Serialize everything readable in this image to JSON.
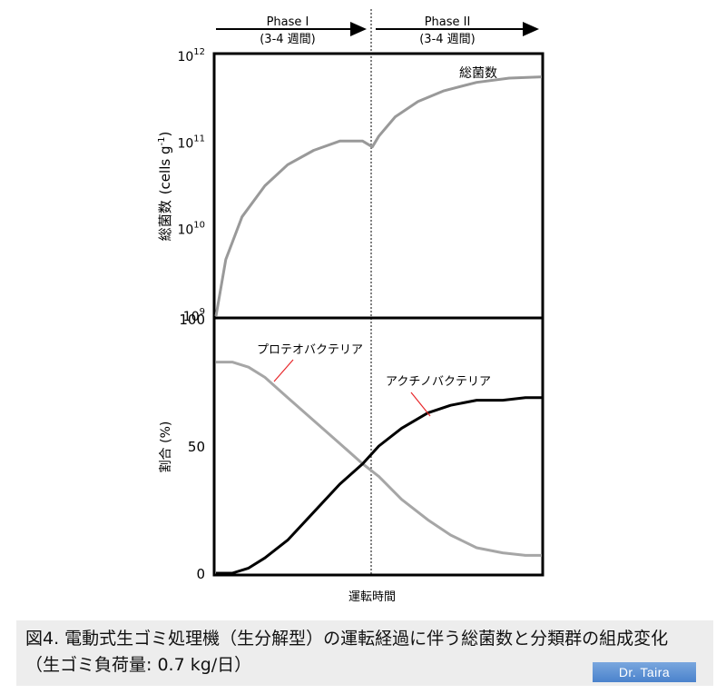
{
  "phases": [
    {
      "label": "Phase I",
      "duration": "(3-4 週間)"
    },
    {
      "label": "Phase II",
      "duration": "(3-4 週間)"
    }
  ],
  "chart_data": [
    {
      "type": "line",
      "ylabel_main": "総菌数",
      "ylabel_unit": "(cells g",
      "ylabel_sup": "-1",
      "ylabel_close": ")",
      "yscale": "log",
      "ylim": [
        1000000000.0,
        1000000000000.0
      ],
      "yticks": [
        {
          "base": "10",
          "exp": "9",
          "value": 1000000000.0
        },
        {
          "base": "10",
          "exp": "10",
          "value": 10000000000.0
        },
        {
          "base": "10",
          "exp": "11",
          "value": 100000000000.0
        },
        {
          "base": "10",
          "exp": "12",
          "value": 1000000000000.0
        }
      ],
      "xlim": [
        0,
        100
      ],
      "series": [
        {
          "name": "総菌数",
          "color": "#999999",
          "x": [
            0,
            3,
            8,
            15,
            22,
            30,
            38,
            45,
            48,
            50,
            55,
            62,
            70,
            80,
            90,
            100
          ],
          "y": [
            1000000000.0,
            4500000000.0,
            14000000000.0,
            32000000000.0,
            56000000000.0,
            82000000000.0,
            105000000000.0,
            105000000000.0,
            90000000000.0,
            120000000000.0,
            200000000000.0,
            300000000000.0,
            400000000000.0,
            500000000000.0,
            560000000000.0,
            580000000000.0
          ]
        }
      ]
    },
    {
      "type": "line",
      "ylabel": "割合 (%)",
      "xlabel": "運転時間",
      "ylim": [
        0,
        100
      ],
      "yticks": [
        "0",
        "50",
        "100"
      ],
      "xlim": [
        0,
        100
      ],
      "series": [
        {
          "name": "プロテオバクテリア",
          "color": "#a6a6a6",
          "x": [
            0,
            5,
            10,
            15,
            22,
            30,
            38,
            45,
            50,
            57,
            65,
            72,
            80,
            88,
            95,
            100
          ],
          "y": [
            83,
            83,
            81,
            77,
            69,
            60,
            51,
            43,
            38,
            29,
            21,
            15,
            10,
            8,
            7,
            7
          ]
        },
        {
          "name": "アクチノバクテリア",
          "color": "#000000",
          "x": [
            0,
            5,
            10,
            15,
            22,
            30,
            38,
            45,
            50,
            57,
            65,
            72,
            80,
            88,
            95,
            100
          ],
          "y": [
            0,
            0,
            2,
            6,
            13,
            24,
            35,
            43,
            50,
            57,
            63,
            66,
            68,
            68,
            69,
            69
          ]
        }
      ]
    }
  ],
  "caption": "図4. 電動式生ゴミ処理機（生分解型）の運転経過に伴う総菌数と分類群の組成変化（生ゴミ負荷量: 0.7 kg/日）",
  "watermark": "Dr. Taira"
}
